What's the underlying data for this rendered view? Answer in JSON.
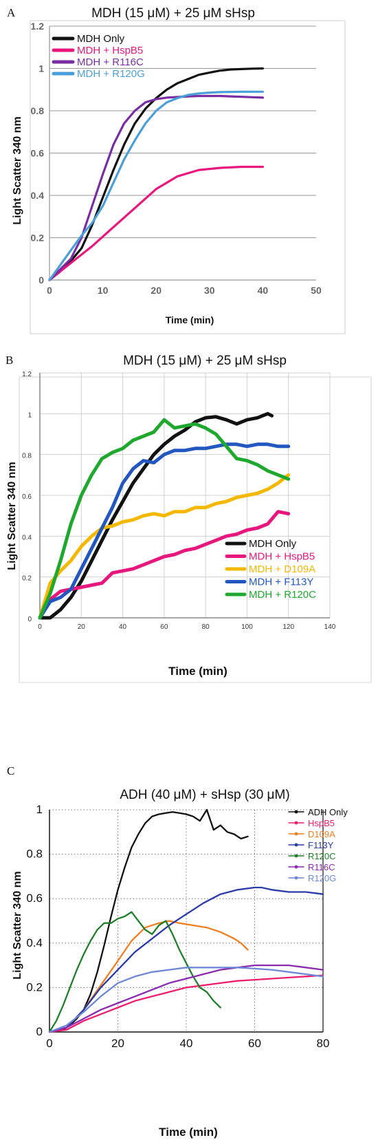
{
  "panels": [
    {
      "letter": "A",
      "chart_data": {
        "type": "line",
        "title": "MDH (15 μM) + 25 μM sHsp",
        "xlabel": "Time (min)",
        "ylabel": "Light Scatter 340 nm",
        "xlim": [
          0,
          50
        ],
        "ylim": [
          0,
          1.2
        ],
        "xticks": [
          "0",
          "10",
          "20",
          "30",
          "40",
          "50"
        ],
        "yticks": [
          "0",
          "0.2",
          "0.4",
          "0.6",
          "0.8",
          "1",
          "1.2"
        ],
        "grid": "horizontal",
        "legend": "top-left",
        "series": [
          {
            "name": "MDH  Only",
            "color": "#111111",
            "x": [
              0,
              2,
              4,
              6,
              8,
              10,
              12,
              14,
              16,
              18,
              20,
              22,
              24,
              26,
              28,
              30,
              32,
              34,
              36,
              38,
              40
            ],
            "y": [
              0,
              0.04,
              0.09,
              0.15,
              0.26,
              0.39,
              0.52,
              0.64,
              0.74,
              0.81,
              0.86,
              0.9,
              0.93,
              0.95,
              0.97,
              0.98,
              0.99,
              0.995,
              0.997,
              0.999,
              1.0
            ]
          },
          {
            "name": "MDH + HspB5",
            "color": "#e8177d",
            "x": [
              0,
              4,
              8,
              12,
              16,
              20,
              24,
              28,
              32,
              36,
              40
            ],
            "y": [
              0,
              0.08,
              0.16,
              0.25,
              0.34,
              0.43,
              0.49,
              0.52,
              0.53,
              0.535,
              0.535
            ]
          },
          {
            "name": "MDH + R116C",
            "color": "#7a2da3",
            "x": [
              0,
              2,
              4,
              6,
              8,
              10,
              12,
              14,
              16,
              18,
              20,
              22,
              24,
              26,
              28,
              30,
              32,
              34,
              36,
              38,
              40
            ],
            "y": [
              0,
              0.05,
              0.1,
              0.2,
              0.35,
              0.5,
              0.64,
              0.74,
              0.8,
              0.84,
              0.855,
              0.862,
              0.865,
              0.868,
              0.87,
              0.87,
              0.87,
              0.868,
              0.866,
              0.864,
              0.862
            ]
          },
          {
            "name": "MDH + R120G",
            "color": "#4a9fd8",
            "x": [
              0,
              2,
              4,
              6,
              8,
              10,
              12,
              14,
              16,
              18,
              20,
              22,
              24,
              26,
              28,
              30,
              32,
              34,
              36,
              38,
              40
            ],
            "y": [
              0,
              0.07,
              0.14,
              0.21,
              0.27,
              0.35,
              0.46,
              0.57,
              0.66,
              0.74,
              0.8,
              0.84,
              0.86,
              0.875,
              0.882,
              0.886,
              0.888,
              0.889,
              0.89,
              0.89,
              0.89
            ]
          }
        ]
      }
    },
    {
      "letter": "B",
      "chart_data": {
        "type": "line",
        "title": "MDH (15 μM) + 25 μM sHsp",
        "xlabel": "Time (min)",
        "ylabel": "Light Scatter 340 nm",
        "xlim": [
          0,
          140
        ],
        "ylim": [
          0,
          1.2
        ],
        "xticks": [
          "0",
          "20",
          "40",
          "60",
          "80",
          "100",
          "120",
          "140"
        ],
        "yticks": [
          "0",
          "0.2",
          "0.4",
          "0.6",
          "0.8",
          "1",
          "1.2"
        ],
        "grid": "both",
        "legend": "bottom-right",
        "series": [
          {
            "name": "MDH Only",
            "color": "#111111",
            "x": [
              0,
              5,
              10,
              15,
              20,
              25,
              30,
              35,
              40,
              45,
              50,
              55,
              60,
              65,
              70,
              75,
              80,
              85,
              90,
              95,
              100,
              105,
              110,
              112
            ],
            "y": [
              0,
              0,
              0.04,
              0.1,
              0.18,
              0.28,
              0.38,
              0.48,
              0.57,
              0.66,
              0.73,
              0.8,
              0.85,
              0.89,
              0.92,
              0.96,
              0.98,
              0.985,
              0.97,
              0.95,
              0.97,
              0.98,
              1.0,
              0.99
            ]
          },
          {
            "name": "MDH + HspB5",
            "color": "#e8177d",
            "x": [
              0,
              5,
              10,
              15,
              20,
              25,
              30,
              35,
              40,
              45,
              50,
              55,
              60,
              65,
              70,
              75,
              80,
              85,
              90,
              95,
              100,
              105,
              110,
              115,
              120
            ],
            "y": [
              0,
              0.09,
              0.13,
              0.14,
              0.15,
              0.16,
              0.17,
              0.22,
              0.23,
              0.24,
              0.26,
              0.28,
              0.3,
              0.31,
              0.33,
              0.34,
              0.36,
              0.38,
              0.4,
              0.41,
              0.43,
              0.44,
              0.46,
              0.52,
              0.51
            ]
          },
          {
            "name": "MDH + D109A",
            "color": "#f5b800",
            "x": [
              0,
              5,
              10,
              15,
              20,
              25,
              30,
              35,
              40,
              45,
              50,
              55,
              60,
              65,
              70,
              75,
              80,
              85,
              90,
              95,
              100,
              105,
              110,
              115,
              120
            ],
            "y": [
              0,
              0.17,
              0.23,
              0.28,
              0.35,
              0.4,
              0.44,
              0.45,
              0.47,
              0.48,
              0.5,
              0.51,
              0.5,
              0.52,
              0.52,
              0.54,
              0.54,
              0.56,
              0.57,
              0.59,
              0.6,
              0.61,
              0.63,
              0.66,
              0.7
            ]
          },
          {
            "name": "MDH + F113Y",
            "color": "#2157bf",
            "x": [
              0,
              5,
              10,
              15,
              20,
              25,
              30,
              35,
              40,
              45,
              50,
              55,
              60,
              65,
              70,
              75,
              80,
              85,
              90,
              95,
              100,
              105,
              110,
              115,
              120
            ],
            "y": [
              0,
              0.08,
              0.1,
              0.14,
              0.24,
              0.34,
              0.44,
              0.54,
              0.66,
              0.73,
              0.77,
              0.76,
              0.8,
              0.82,
              0.82,
              0.83,
              0.83,
              0.84,
              0.85,
              0.85,
              0.84,
              0.85,
              0.85,
              0.84,
              0.84
            ]
          },
          {
            "name": "MDH + R120C",
            "color": "#1fa82e",
            "x": [
              0,
              5,
              10,
              15,
              20,
              25,
              30,
              35,
              40,
              45,
              50,
              55,
              60,
              65,
              70,
              75,
              80,
              85,
              90,
              95,
              100,
              105,
              110,
              115,
              120
            ],
            "y": [
              0,
              0.12,
              0.28,
              0.46,
              0.6,
              0.7,
              0.78,
              0.81,
              0.83,
              0.87,
              0.89,
              0.91,
              0.97,
              0.93,
              0.94,
              0.95,
              0.93,
              0.9,
              0.84,
              0.78,
              0.77,
              0.75,
              0.72,
              0.7,
              0.68
            ]
          }
        ]
      }
    },
    {
      "letter": "C",
      "chart_data": {
        "type": "line",
        "title": "ADH (40 μM) +  sHsp (30 μM)",
        "xlabel": "Time (min)",
        "ylabel": "Light Scatter 340 nm",
        "xlim": [
          0,
          80
        ],
        "ylim": [
          0,
          1
        ],
        "xticks": [
          "0",
          "20",
          "40",
          "60",
          "80"
        ],
        "yticks": [
          "0",
          "0.2",
          "0.4",
          "0.6",
          "0.8",
          "1"
        ],
        "grid": "dotted",
        "legend": "top-right",
        "series": [
          {
            "name": "ADH Only",
            "color": "#111111",
            "x": [
              0,
              4,
              6,
              8,
              10,
              12,
              14,
              16,
              18,
              20,
              22,
              24,
              26,
              28,
              30,
              32,
              34,
              36,
              38,
              40,
              42,
              44,
              46,
              48,
              50,
              52,
              54,
              56,
              58
            ],
            "y": [
              0,
              0.01,
              0.03,
              0.06,
              0.1,
              0.17,
              0.27,
              0.39,
              0.52,
              0.64,
              0.74,
              0.83,
              0.89,
              0.94,
              0.97,
              0.98,
              0.985,
              0.99,
              0.985,
              0.98,
              0.97,
              0.95,
              1.0,
              0.91,
              0.93,
              0.9,
              0.89,
              0.87,
              0.88
            ]
          },
          {
            "name": "HspB5",
            "color": "#ee1e6f",
            "x": [
              0,
              5,
              10,
              15,
              20,
              25,
              30,
              35,
              40,
              45,
              50,
              55,
              60,
              65,
              70,
              75,
              80
            ],
            "y": [
              0,
              0.01,
              0.05,
              0.08,
              0.11,
              0.14,
              0.16,
              0.18,
              0.2,
              0.21,
              0.22,
              0.23,
              0.235,
              0.24,
              0.245,
              0.25,
              0.255
            ]
          },
          {
            "name": "D109A",
            "color": "#f07d1e",
            "x": [
              0,
              5,
              10,
              15,
              20,
              24,
              28,
              32,
              35,
              38,
              42,
              46,
              50,
              54,
              56,
              58
            ],
            "y": [
              0,
              0.02,
              0.1,
              0.21,
              0.32,
              0.41,
              0.47,
              0.49,
              0.5,
              0.49,
              0.48,
              0.47,
              0.45,
              0.42,
              0.4,
              0.37
            ]
          },
          {
            "name": "F113Y",
            "color": "#2a3aa8",
            "x": [
              0,
              5,
              10,
              15,
              20,
              25,
              30,
              35,
              40,
              45,
              50,
              55,
              60,
              62,
              65,
              70,
              75,
              80
            ],
            "y": [
              0,
              0.02,
              0.1,
              0.2,
              0.28,
              0.36,
              0.42,
              0.48,
              0.53,
              0.58,
              0.62,
              0.64,
              0.65,
              0.65,
              0.64,
              0.63,
              0.63,
              0.62
            ]
          },
          {
            "name": "R120C",
            "color": "#1f7f2a",
            "x": [
              0,
              2,
              4,
              6,
              8,
              10,
              12,
              14,
              16,
              18,
              20,
              22,
              24,
              26,
              28,
              30,
              32,
              34,
              36,
              38,
              40,
              42,
              44,
              46,
              48,
              50
            ],
            "y": [
              0,
              0.05,
              0.12,
              0.2,
              0.28,
              0.35,
              0.41,
              0.46,
              0.49,
              0.49,
              0.51,
              0.52,
              0.54,
              0.5,
              0.46,
              0.44,
              0.48,
              0.5,
              0.44,
              0.37,
              0.31,
              0.25,
              0.2,
              0.18,
              0.14,
              0.11
            ]
          },
          {
            "name": "R116C",
            "color": "#8a2ab0",
            "x": [
              0,
              5,
              10,
              15,
              20,
              25,
              30,
              35,
              40,
              45,
              50,
              55,
              60,
              65,
              70,
              75,
              80
            ],
            "y": [
              0,
              0.02,
              0.06,
              0.1,
              0.13,
              0.16,
              0.19,
              0.22,
              0.24,
              0.26,
              0.28,
              0.29,
              0.3,
              0.3,
              0.3,
              0.29,
              0.28
            ]
          },
          {
            "name": "R120G",
            "color": "#6e87d6",
            "x": [
              0,
              5,
              10,
              15,
              20,
              25,
              30,
              35,
              40,
              45,
              50,
              55,
              60,
              65,
              70,
              75,
              80
            ],
            "y": [
              0,
              0.03,
              0.09,
              0.16,
              0.22,
              0.25,
              0.27,
              0.28,
              0.29,
              0.29,
              0.29,
              0.29,
              0.285,
              0.28,
              0.27,
              0.26,
              0.25
            ]
          }
        ]
      }
    }
  ]
}
